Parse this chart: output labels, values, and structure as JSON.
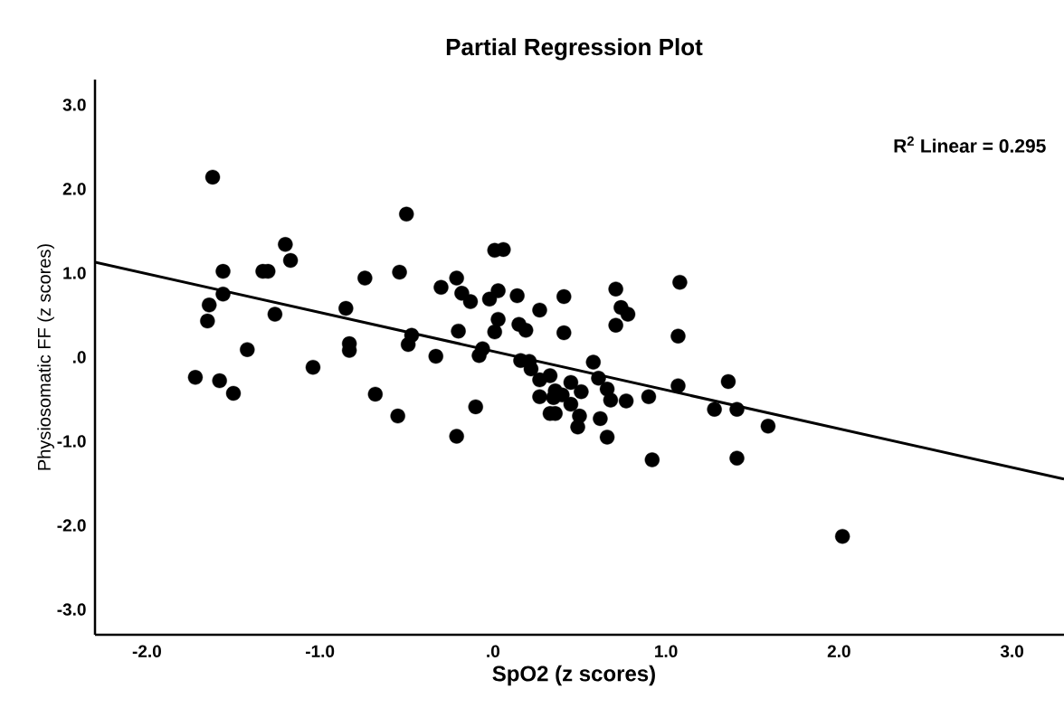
{
  "chart_data": {
    "type": "scatter",
    "title": "Partial Regression Plot",
    "xlabel": "SpO2 (z scores)",
    "ylabel": "Physiosomatic FF (z scores)",
    "annotations": [
      "R$^{2}$ Linear = 0.295"
    ],
    "marker": "circle",
    "grid": false,
    "xlim": [
      -2.3,
      3.3
    ],
    "ylim": [
      -3.3,
      3.3
    ],
    "xticks": [
      {
        "value": -2,
        "label": "-2.0"
      },
      {
        "value": -1,
        "label": "-1.0"
      },
      {
        "value": 0,
        "label": ".0"
      },
      {
        "value": 1,
        "label": "1.0"
      },
      {
        "value": 2,
        "label": "2.0"
      },
      {
        "value": 3,
        "label": "3.0"
      }
    ],
    "yticks": [
      {
        "value": -3,
        "label": "-3.0"
      },
      {
        "value": -2,
        "label": "-2.0"
      },
      {
        "value": -1,
        "label": "-1.0"
      },
      {
        "value": 0,
        "label": ".0"
      },
      {
        "value": 1,
        "label": "1.0"
      },
      {
        "value": 2,
        "label": "2.0"
      },
      {
        "value": 3,
        "label": "3.0"
      }
    ],
    "series": [
      {
        "color": "#000000",
        "x": [
          -1.62,
          -1.72,
          -1.64,
          -1.65,
          -1.56,
          -1.56,
          -1.58,
          -1.5,
          -1.42,
          -1.33,
          -1.3,
          -1.2,
          -1.17,
          -1.26,
          -1.04,
          -0.74,
          -0.85,
          -0.83,
          -0.83,
          -0.68,
          -0.54,
          -0.5,
          -0.55,
          -0.47,
          -0.49,
          -0.33,
          -0.3,
          -0.21,
          -0.18,
          -0.13,
          -0.2,
          -0.21,
          -0.1,
          -0.06,
          -0.08,
          0.01,
          0.06,
          -0.02,
          0.03,
          0.03,
          0.01,
          0.14,
          0.15,
          0.19,
          0.27,
          0.16,
          0.21,
          0.22,
          0.27,
          0.27,
          0.41,
          0.71,
          0.74,
          0.78,
          0.71,
          1.08,
          1.07,
          0.41,
          0.33,
          0.36,
          0.45,
          0.51,
          0.35,
          0.4,
          0.45,
          0.36,
          0.33,
          0.5,
          0.49,
          0.62,
          0.66,
          0.58,
          0.61,
          0.66,
          0.68,
          0.77,
          0.9,
          1.07,
          1.28,
          1.41,
          1.36,
          1.59,
          0.92,
          1.41,
          2.02
        ],
        "values": [
          2.14,
          -0.24,
          0.62,
          0.43,
          1.02,
          0.75,
          -0.28,
          -0.43,
          0.09,
          1.02,
          1.02,
          1.34,
          1.15,
          0.51,
          -0.12,
          0.94,
          0.58,
          0.16,
          0.08,
          -0.44,
          1.01,
          1.7,
          -0.7,
          0.26,
          0.15,
          0.01,
          0.83,
          0.94,
          0.76,
          0.66,
          0.31,
          -0.94,
          -0.59,
          0.1,
          0.02,
          1.27,
          1.28,
          0.69,
          0.79,
          0.45,
          0.3,
          0.73,
          0.39,
          0.32,
          0.56,
          -0.04,
          -0.05,
          -0.14,
          -0.27,
          -0.47,
          0.72,
          0.81,
          0.59,
          0.51,
          0.38,
          0.89,
          0.25,
          0.29,
          -0.22,
          -0.4,
          -0.3,
          -0.41,
          -0.48,
          -0.45,
          -0.56,
          -0.67,
          -0.67,
          -0.7,
          -0.83,
          -0.73,
          -0.95,
          -0.06,
          -0.25,
          -0.38,
          -0.51,
          -0.52,
          -0.47,
          -0.34,
          -0.62,
          -0.62,
          -0.29,
          -0.82,
          -1.22,
          -1.2,
          -2.13
        ]
      },
      {
        "type": "line",
        "marker": "none",
        "color": "#000000",
        "x": [
          -2.3,
          3.3
        ],
        "values": [
          1.13,
          -1.45
        ]
      }
    ]
  }
}
